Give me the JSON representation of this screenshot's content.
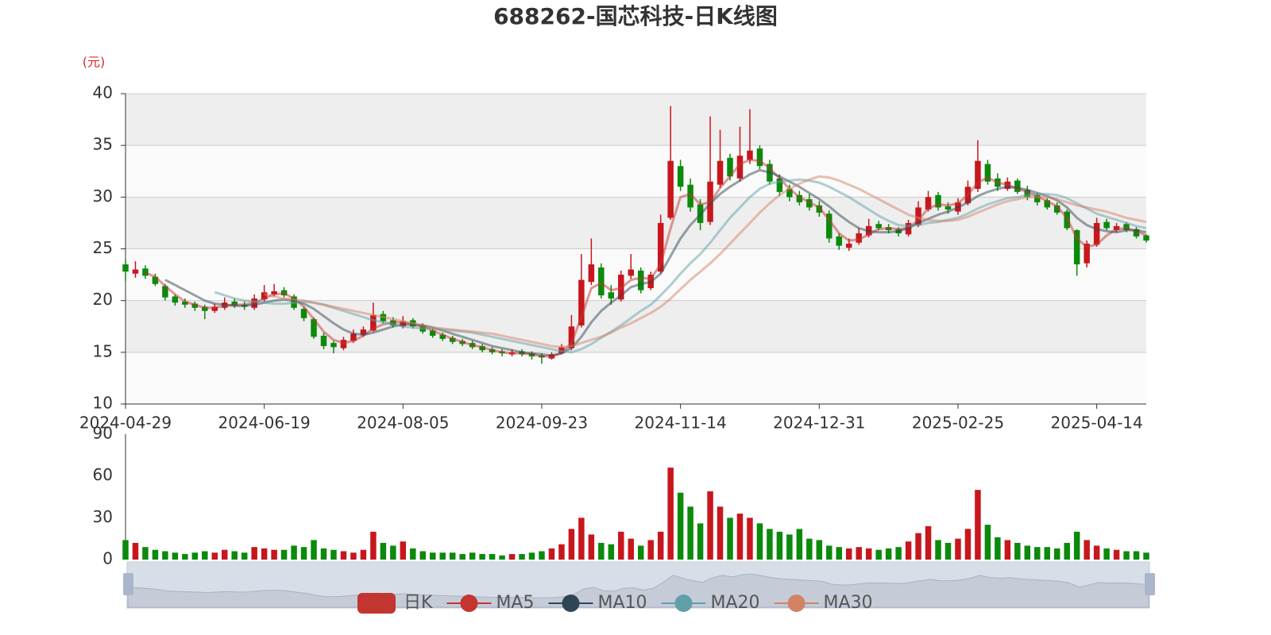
{
  "chart_data": {
    "type": "candlestick",
    "title": "688262-国芯科技-日K线图",
    "y_unit": "(元)",
    "categories": [
      "2024-04-29",
      null,
      null,
      null,
      null,
      null,
      null,
      null,
      null,
      null,
      null,
      null,
      null,
      null,
      "2024-06-19",
      null,
      null,
      null,
      null,
      null,
      null,
      null,
      null,
      null,
      null,
      null,
      null,
      null,
      "2024-08-05",
      null,
      null,
      null,
      null,
      null,
      null,
      null,
      null,
      null,
      null,
      null,
      null,
      null,
      "2024-09-23",
      null,
      null,
      null,
      null,
      null,
      null,
      null,
      null,
      null,
      null,
      null,
      null,
      null,
      "2024-11-14",
      null,
      null,
      null,
      null,
      null,
      null,
      null,
      null,
      null,
      null,
      null,
      null,
      null,
      "2024-12-31",
      null,
      null,
      null,
      null,
      null,
      null,
      null,
      null,
      null,
      null,
      null,
      null,
      null,
      "2025-02-25",
      null,
      null,
      null,
      null,
      null,
      null,
      null,
      null,
      null,
      null,
      null,
      null,
      null,
      "2025-04-14",
      null,
      null,
      null,
      null,
      null
    ],
    "ylim": [
      10,
      40
    ],
    "yticks": [
      10,
      15,
      20,
      25,
      30,
      35,
      40
    ],
    "up_color": "#c8161d",
    "down_color": "#0b8a0b",
    "series": [
      {
        "name": "日K",
        "type": "candlestick",
        "color": "#c23531",
        "open": [
          23.5,
          22.6,
          23.1,
          22.3,
          21.4,
          20.4,
          19.9,
          19.7,
          19.4,
          19.0,
          19.3,
          19.9,
          19.6,
          19.3,
          20.1,
          20.6,
          21.0,
          20.4,
          19.2,
          18.2,
          16.6,
          15.9,
          15.4,
          16.1,
          16.7,
          17.1,
          18.7,
          18.1,
          17.5,
          18.1,
          17.6,
          17.1,
          16.7,
          16.4,
          16.1,
          15.9,
          15.6,
          15.3,
          15.1,
          14.8,
          15.1,
          14.9,
          14.7,
          14.4,
          14.9,
          15.4,
          17.6,
          21.8,
          23.2,
          20.8,
          20.1,
          22.4,
          22.9,
          21.2,
          22.8,
          28.0,
          33.0,
          31.2,
          29.3,
          27.6,
          31.2,
          33.8,
          31.8,
          33.6,
          34.7,
          33.2,
          31.8,
          30.8,
          30.2,
          29.8,
          29.2,
          28.4,
          26.2,
          25.1,
          25.6,
          26.3,
          27.4,
          27.1,
          26.9,
          26.4,
          27.3,
          28.8,
          30.2,
          29.1,
          28.6,
          29.4,
          30.8,
          33.2,
          31.8,
          30.8,
          31.6,
          30.7,
          30.2,
          29.7,
          29.2,
          28.6,
          26.8,
          23.6,
          25.4,
          27.6,
          26.8,
          27.4,
          26.9,
          26.3
        ],
        "close": [
          22.8,
          23.0,
          22.4,
          21.6,
          20.3,
          19.8,
          19.6,
          19.3,
          19.0,
          19.4,
          19.8,
          19.5,
          19.4,
          20.2,
          20.8,
          20.9,
          20.5,
          19.3,
          18.3,
          16.5,
          15.6,
          15.5,
          16.2,
          16.8,
          17.2,
          18.6,
          18.0,
          17.6,
          18.0,
          17.5,
          17.0,
          16.6,
          16.3,
          16.0,
          15.8,
          15.5,
          15.2,
          15.0,
          14.9,
          15.0,
          14.8,
          14.6,
          14.5,
          14.8,
          15.5,
          17.5,
          22.0,
          23.5,
          20.5,
          20.2,
          22.5,
          23.0,
          21.0,
          22.5,
          27.5,
          33.5,
          31.0,
          29.0,
          27.5,
          31.5,
          33.5,
          32.0,
          34.0,
          34.5,
          33.0,
          31.5,
          30.5,
          30.0,
          29.5,
          29.0,
          28.5,
          26.0,
          25.3,
          25.5,
          26.5,
          27.2,
          27.0,
          26.8,
          26.5,
          27.5,
          29.0,
          30.0,
          29.0,
          28.8,
          29.5,
          31.0,
          33.5,
          31.5,
          31.0,
          31.5,
          30.5,
          30.0,
          29.5,
          29.0,
          28.5,
          27.0,
          23.5,
          25.5,
          27.5,
          27.0,
          27.2,
          26.8,
          26.2,
          25.8
        ],
        "low": [
          21.9,
          22.2,
          22.1,
          21.4,
          20.0,
          19.5,
          19.3,
          19.0,
          18.2,
          18.8,
          19.1,
          19.3,
          19.1,
          19.1,
          19.9,
          20.4,
          20.3,
          19.1,
          18.0,
          16.3,
          15.3,
          14.9,
          15.2,
          15.9,
          16.5,
          17.0,
          17.8,
          17.4,
          17.3,
          17.3,
          16.8,
          16.4,
          16.1,
          15.8,
          15.6,
          15.3,
          15.0,
          14.8,
          14.6,
          14.6,
          14.6,
          14.3,
          13.9,
          14.3,
          14.8,
          15.2,
          17.4,
          21.5,
          20.2,
          19.6,
          19.9,
          22.1,
          20.7,
          21.0,
          22.6,
          27.8,
          30.6,
          28.6,
          26.8,
          27.3,
          30.9,
          31.6,
          31.5,
          33.2,
          32.7,
          31.2,
          30.1,
          29.6,
          29.2,
          28.7,
          28.1,
          25.6,
          24.9,
          24.8,
          25.4,
          26.1,
          26.8,
          26.5,
          26.2,
          26.2,
          27.1,
          28.6,
          28.7,
          28.4,
          28.3,
          29.2,
          30.5,
          31.2,
          30.6,
          30.6,
          30.3,
          29.7,
          29.2,
          28.8,
          28.3,
          26.8,
          22.4,
          23.2,
          25.2,
          26.8,
          26.6,
          26.6,
          26.0,
          25.6
        ],
        "high": [
          24.0,
          23.8,
          23.4,
          22.6,
          21.6,
          20.6,
          20.2,
          19.9,
          19.6,
          19.7,
          20.3,
          20.2,
          19.9,
          20.6,
          21.5,
          21.6,
          21.3,
          20.6,
          19.4,
          18.4,
          16.9,
          16.1,
          16.5,
          17.2,
          17.5,
          19.8,
          19.0,
          18.4,
          18.5,
          18.3,
          17.8,
          17.3,
          16.9,
          16.6,
          16.3,
          16.1,
          15.8,
          15.5,
          15.3,
          15.3,
          15.3,
          15.1,
          14.9,
          15.0,
          15.8,
          18.6,
          24.5,
          26.0,
          23.6,
          21.5,
          22.9,
          24.5,
          23.2,
          22.8,
          28.3,
          38.8,
          33.6,
          31.8,
          29.8,
          37.8,
          36.5,
          34.2,
          36.8,
          38.5,
          35.0,
          33.6,
          32.2,
          31.2,
          30.6,
          30.3,
          29.6,
          28.7,
          26.5,
          26.0,
          27.0,
          27.9,
          27.7,
          27.4,
          27.1,
          27.8,
          29.6,
          30.6,
          30.5,
          29.5,
          29.9,
          31.6,
          35.5,
          33.6,
          32.3,
          31.9,
          31.8,
          31.1,
          30.4,
          29.9,
          29.5,
          28.8,
          26.9,
          25.8,
          28.0,
          27.9,
          27.5,
          27.6,
          27.1,
          26.4
        ]
      },
      {
        "name": "MA5",
        "type": "line",
        "color": "#c23531",
        "values": [
          null,
          null,
          22.7,
          22.3,
          21.4,
          20.6,
          19.9,
          19.6,
          19.3,
          19.3,
          19.5,
          19.6,
          19.6,
          19.8,
          20.2,
          20.6,
          20.7,
          20.2,
          19.4,
          18.2,
          17.0,
          16.2,
          15.9,
          16.1,
          16.6,
          17.3,
          17.7,
          17.9,
          17.9,
          17.7,
          17.5,
          17.1,
          16.7,
          16.3,
          16.0,
          15.7,
          15.5,
          15.2,
          15.0,
          14.9,
          14.9,
          14.8,
          14.6,
          14.6,
          14.9,
          15.9,
          18.4,
          21.2,
          21.7,
          21.0,
          21.2,
          22.0,
          22.2,
          22.1,
          23.5,
          27.0,
          30.0,
          30.3,
          29.3,
          29.5,
          30.9,
          32.0,
          33.2,
          33.6,
          33.5,
          32.8,
          31.8,
          30.8,
          30.0,
          29.5,
          29.0,
          27.8,
          26.5,
          25.8,
          25.9,
          26.4,
          26.9,
          27.0,
          26.9,
          27.0,
          27.8,
          28.9,
          29.3,
          29.2,
          29.4,
          30.2,
          31.4,
          31.9,
          31.4,
          31.2,
          30.8,
          30.5,
          30.1,
          29.6,
          29.1,
          28.0,
          26.0,
          25.2,
          25.4,
          26.3,
          26.9,
          27.0,
          26.7,
          26.3
        ]
      },
      {
        "name": "MA10",
        "type": "line",
        "color": "#2f4554",
        "values": [
          null,
          null,
          null,
          null,
          22.0,
          21.5,
          21.0,
          20.5,
          20.0,
          19.7,
          19.6,
          19.5,
          19.5,
          19.6,
          19.8,
          20.0,
          20.1,
          20.0,
          19.7,
          19.2,
          18.5,
          17.8,
          17.2,
          16.8,
          16.7,
          16.9,
          17.2,
          17.5,
          17.7,
          17.7,
          17.6,
          17.4,
          17.1,
          16.8,
          16.5,
          16.2,
          15.9,
          15.6,
          15.4,
          15.2,
          15.0,
          14.9,
          14.8,
          14.7,
          14.9,
          15.4,
          16.5,
          17.9,
          19.0,
          19.8,
          20.5,
          21.3,
          21.6,
          21.8,
          22.6,
          24.3,
          26.0,
          27.3,
          28.3,
          29.4,
          30.3,
          31.0,
          31.6,
          32.2,
          32.6,
          32.4,
          32.0,
          31.5,
          31.0,
          30.4,
          29.8,
          29.1,
          28.3,
          27.6,
          27.0,
          26.7,
          26.6,
          26.6,
          26.7,
          27.0,
          27.5,
          27.9,
          28.3,
          28.6,
          29.0,
          29.5,
          30.1,
          30.5,
          30.8,
          31.0,
          30.9,
          30.7,
          30.4,
          30.1,
          29.7,
          29.0,
          28.0,
          27.3,
          26.9,
          26.7,
          26.6,
          26.8,
          26.8,
          26.6
        ]
      },
      {
        "name": "MA20",
        "type": "line",
        "color": "#61a0a8",
        "values": [
          null,
          null,
          null,
          null,
          null,
          null,
          null,
          null,
          null,
          20.8,
          20.5,
          20.2,
          20.0,
          19.9,
          19.8,
          19.7,
          19.7,
          19.8,
          19.9,
          19.8,
          19.6,
          19.3,
          19.0,
          18.7,
          18.4,
          18.1,
          17.9,
          17.7,
          17.5,
          17.4,
          17.3,
          17.3,
          17.2,
          17.1,
          17.0,
          16.9,
          16.7,
          16.5,
          16.3,
          16.1,
          15.9,
          15.7,
          15.5,
          15.3,
          15.1,
          15.0,
          15.3,
          15.8,
          16.4,
          17.0,
          17.6,
          18.3,
          19.0,
          19.6,
          20.5,
          21.5,
          22.6,
          23.6,
          24.5,
          25.6,
          26.8,
          28.0,
          29.0,
          30.0,
          30.8,
          31.3,
          31.5,
          31.6,
          31.7,
          31.6,
          31.4,
          31.0,
          30.5,
          30.0,
          29.4,
          28.8,
          28.2,
          27.7,
          27.3,
          27.2,
          27.3,
          27.5,
          27.6,
          27.8,
          28.0,
          28.4,
          28.9,
          29.3,
          29.6,
          29.9,
          30.0,
          30.2,
          30.3,
          30.3,
          30.2,
          29.9,
          29.4,
          28.9,
          28.4,
          28.1,
          27.8,
          27.5,
          27.2,
          27.0
        ]
      },
      {
        "name": "MA30",
        "type": "line",
        "color": "#d48265",
        "values": [
          null,
          null,
          null,
          null,
          null,
          null,
          null,
          null,
          null,
          null,
          null,
          null,
          null,
          null,
          20.6,
          20.4,
          20.2,
          20.1,
          20.0,
          19.8,
          19.6,
          19.4,
          19.2,
          19.0,
          18.8,
          18.6,
          18.4,
          18.2,
          18.0,
          17.8,
          17.6,
          17.4,
          17.3,
          17.2,
          17.1,
          17.0,
          16.9,
          16.8,
          16.6,
          16.4,
          16.2,
          16.0,
          15.8,
          15.6,
          15.5,
          15.6,
          15.9,
          16.2,
          16.5,
          16.9,
          17.4,
          17.8,
          18.3,
          18.8,
          19.4,
          20.2,
          21.1,
          22.0,
          22.8,
          23.6,
          24.5,
          25.5,
          26.5,
          27.5,
          28.5,
          29.4,
          30.2,
          30.8,
          31.3,
          31.7,
          32.0,
          31.9,
          31.6,
          31.2,
          30.8,
          30.3,
          29.8,
          29.3,
          28.8,
          28.3,
          28.0,
          27.8,
          27.7,
          27.7,
          27.8,
          28.1,
          28.5,
          28.9,
          29.3,
          29.6,
          29.8,
          30.0,
          30.0,
          30.0,
          29.8,
          29.5,
          29.2,
          29.0,
          28.8,
          28.6,
          28.3,
          28.0,
          27.8,
          27.6
        ]
      }
    ],
    "volume": {
      "ylim": [
        0,
        90
      ],
      "yticks": [
        0,
        30,
        60,
        90
      ],
      "values": [
        14,
        12,
        9,
        7,
        6,
        5,
        4,
        5,
        6,
        5,
        7,
        6,
        5,
        9,
        8,
        7,
        7,
        10,
        9,
        14,
        8,
        7,
        6,
        5,
        7,
        20,
        12,
        10,
        13,
        8,
        6,
        5,
        5,
        5,
        4,
        5,
        4,
        4,
        3,
        4,
        4,
        5,
        6,
        8,
        11,
        22,
        30,
        18,
        12,
        11,
        20,
        15,
        10,
        14,
        20,
        66,
        48,
        38,
        26,
        49,
        38,
        30,
        33,
        30,
        26,
        22,
        20,
        18,
        22,
        15,
        14,
        10,
        9,
        8,
        9,
        8,
        7,
        8,
        9,
        13,
        19,
        24,
        14,
        12,
        15,
        22,
        50,
        25,
        16,
        14,
        12,
        10,
        9,
        9,
        8,
        12,
        20,
        14,
        10,
        8,
        7,
        6,
        6,
        5
      ]
    }
  }
}
